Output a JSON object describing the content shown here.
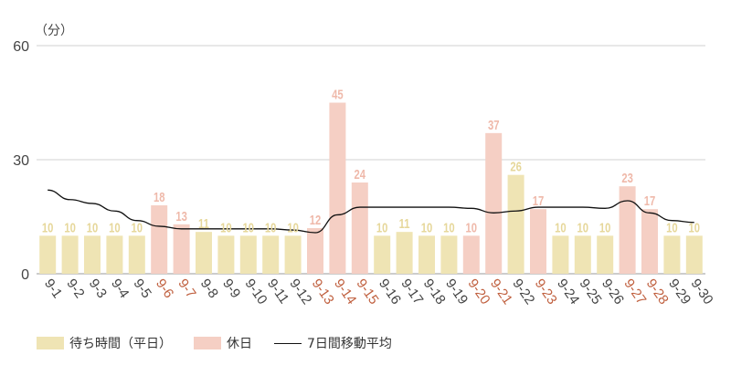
{
  "chart_data": {
    "type": "bar",
    "unit_label": "（分）",
    "ylim": [
      0,
      60
    ],
    "yticks": [
      0,
      30,
      60
    ],
    "grid": true,
    "legend_position": "bottom-left",
    "colors": {
      "weekday": "#efe4b4",
      "holiday": "#f5cfc4",
      "weekday_label": "#e6d79a",
      "holiday_label": "#efb9aa",
      "holiday_tick": "#c0603f",
      "weekday_tick": "#444444",
      "moving_avg": "#111111"
    },
    "categories": [
      "9-1",
      "9-2",
      "9-3",
      "9-4",
      "9-5",
      "9-6",
      "9-7",
      "9-8",
      "9-9",
      "9-10",
      "9-11",
      "9-12",
      "9-13",
      "9-14",
      "9-15",
      "9-16",
      "9-17",
      "9-18",
      "9-19",
      "9-20",
      "9-21",
      "9-22",
      "9-23",
      "9-24",
      "9-25",
      "9-26",
      "9-27",
      "9-28",
      "9-29",
      "9-30"
    ],
    "values": [
      10,
      10,
      10,
      10,
      10,
      18,
      13,
      11,
      10,
      10,
      10,
      10,
      12,
      45,
      24,
      10,
      11,
      10,
      10,
      10,
      37,
      26,
      17,
      10,
      10,
      10,
      23,
      17,
      10,
      10
    ],
    "is_holiday": [
      false,
      false,
      false,
      false,
      false,
      true,
      true,
      false,
      false,
      false,
      false,
      false,
      true,
      true,
      true,
      false,
      false,
      false,
      false,
      true,
      true,
      false,
      true,
      false,
      false,
      false,
      true,
      true,
      false,
      false
    ],
    "moving_average": [
      22,
      19.5,
      18.5,
      16.5,
      14,
      12.5,
      11.8,
      11.8,
      11.8,
      11.8,
      11.8,
      11.5,
      10.8,
      15.5,
      17.5,
      17.5,
      17.5,
      17.5,
      17.5,
      17.2,
      16,
      16.5,
      17.5,
      17.5,
      17.5,
      17.2,
      19.2,
      16,
      14,
      13.5
    ],
    "legend": {
      "weekday": "待ち時間（平日）",
      "holiday": "休日",
      "moving_avg": "7日間移動平均"
    }
  }
}
